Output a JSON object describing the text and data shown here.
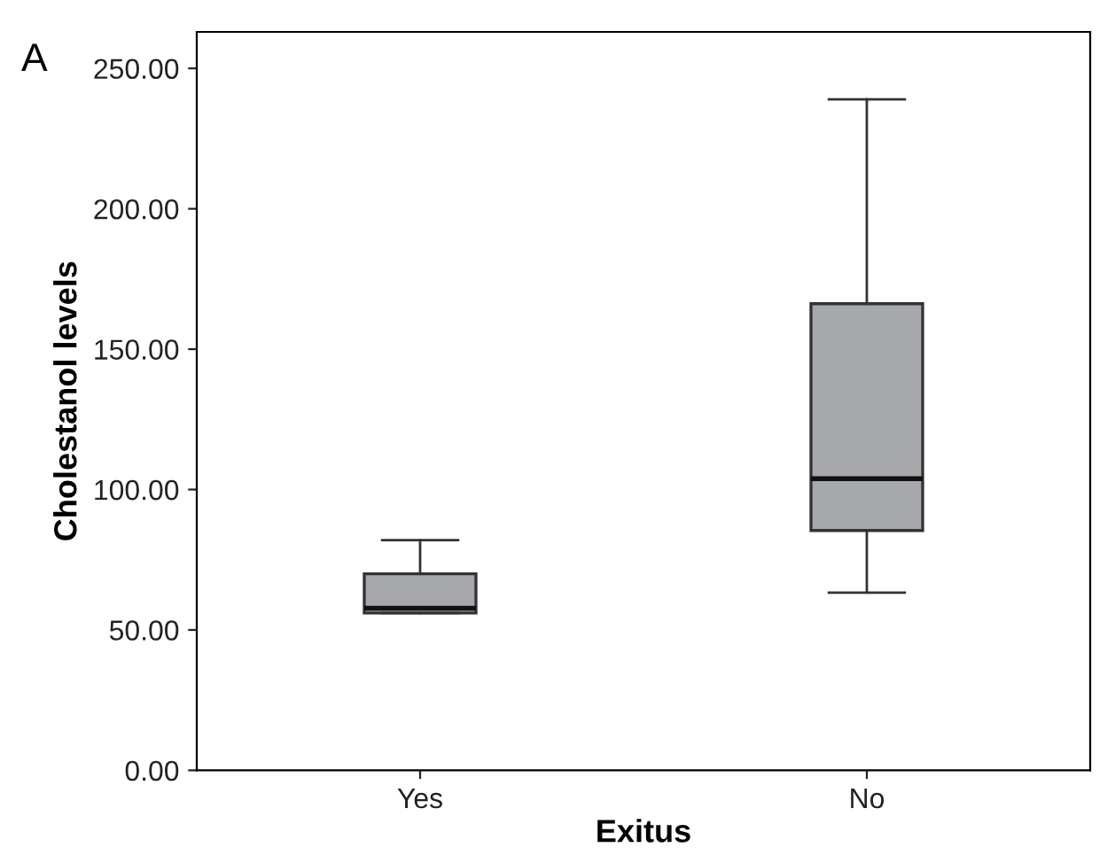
{
  "chart_data": {
    "type": "box",
    "xlabel": "Exitus",
    "ylabel": "Cholestanol levels",
    "annotations": [
      "A"
    ],
    "categories": [
      "Yes",
      "No"
    ],
    "boxes": [
      {
        "low": 56,
        "q1": 56,
        "median": 57.7,
        "q3": 70,
        "high": 82
      },
      {
        "low": 63.3,
        "q1": 85.4,
        "median": 103.9,
        "q3": 166.2,
        "high": 239
      }
    ],
    "color": "#a7a8ab",
    "ylim": [
      0,
      263
    ],
    "yticks": [
      {
        "value": 0,
        "label": "0.00"
      },
      {
        "value": 50,
        "label": "50.00"
      },
      {
        "value": 100,
        "label": "100.00"
      },
      {
        "value": 150,
        "label": "150.00"
      },
      {
        "value": 200,
        "label": "200.00"
      },
      {
        "value": 250,
        "label": "250.00"
      }
    ],
    "grid": false
  }
}
